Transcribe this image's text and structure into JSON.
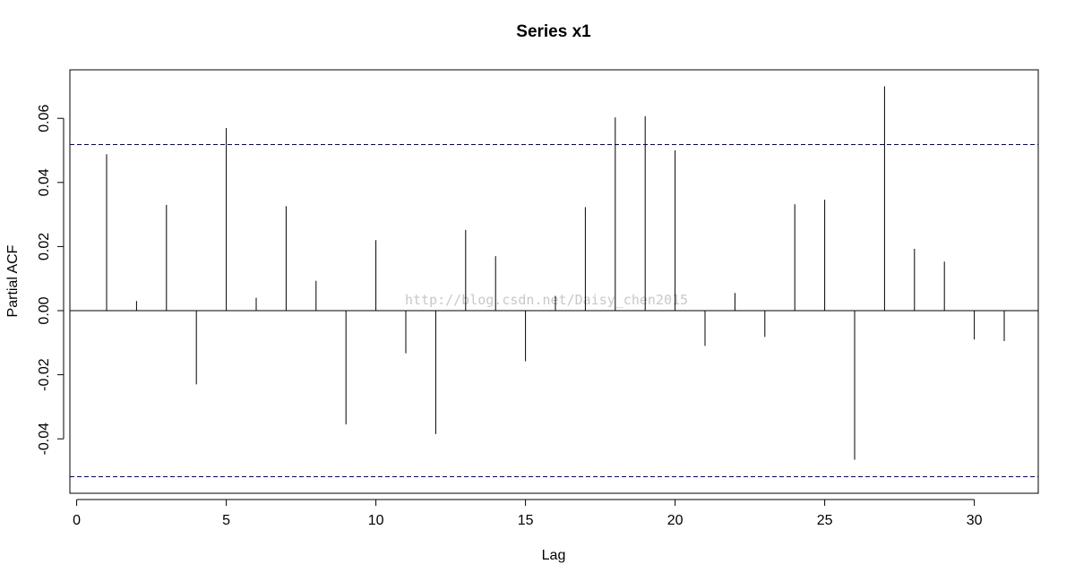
{
  "chart_data": {
    "type": "bar",
    "title": "Series  x1",
    "xlabel": "Lag",
    "ylabel": "Partial ACF",
    "xlim": [
      0,
      32
    ],
    "ylim": [
      -0.058,
      0.074
    ],
    "x_ticks": [
      0,
      5,
      10,
      15,
      20,
      25,
      30
    ],
    "y_ticks": [
      -0.04,
      -0.02,
      0.0,
      0.02,
      0.04,
      0.06
    ],
    "y_tick_labels": [
      "-0.04",
      "-0.02",
      "0.00",
      "0.02",
      "0.04",
      "0.06"
    ],
    "lags": [
      1,
      2,
      3,
      4,
      5,
      6,
      7,
      8,
      9,
      10,
      11,
      12,
      13,
      14,
      15,
      16,
      17,
      18,
      19,
      20,
      21,
      22,
      23,
      24,
      25,
      26,
      27,
      28,
      29,
      30,
      31
    ],
    "values": [
      0.0488,
      0.003,
      0.033,
      -0.023,
      0.057,
      0.004,
      0.0326,
      0.0093,
      -0.0355,
      0.022,
      -0.0133,
      -0.0385,
      0.0252,
      0.017,
      -0.0158,
      0.0046,
      0.0323,
      0.0603,
      0.0607,
      0.05,
      -0.011,
      0.0055,
      -0.0082,
      0.0332,
      0.0346,
      -0.0465,
      0.07,
      0.0193,
      0.0153,
      -0.009,
      -0.0095
    ],
    "confidence_bound": 0.0518,
    "bound_color": "#00008b",
    "watermark": "http://blog.csdn.net/Daisy_chen2015"
  }
}
